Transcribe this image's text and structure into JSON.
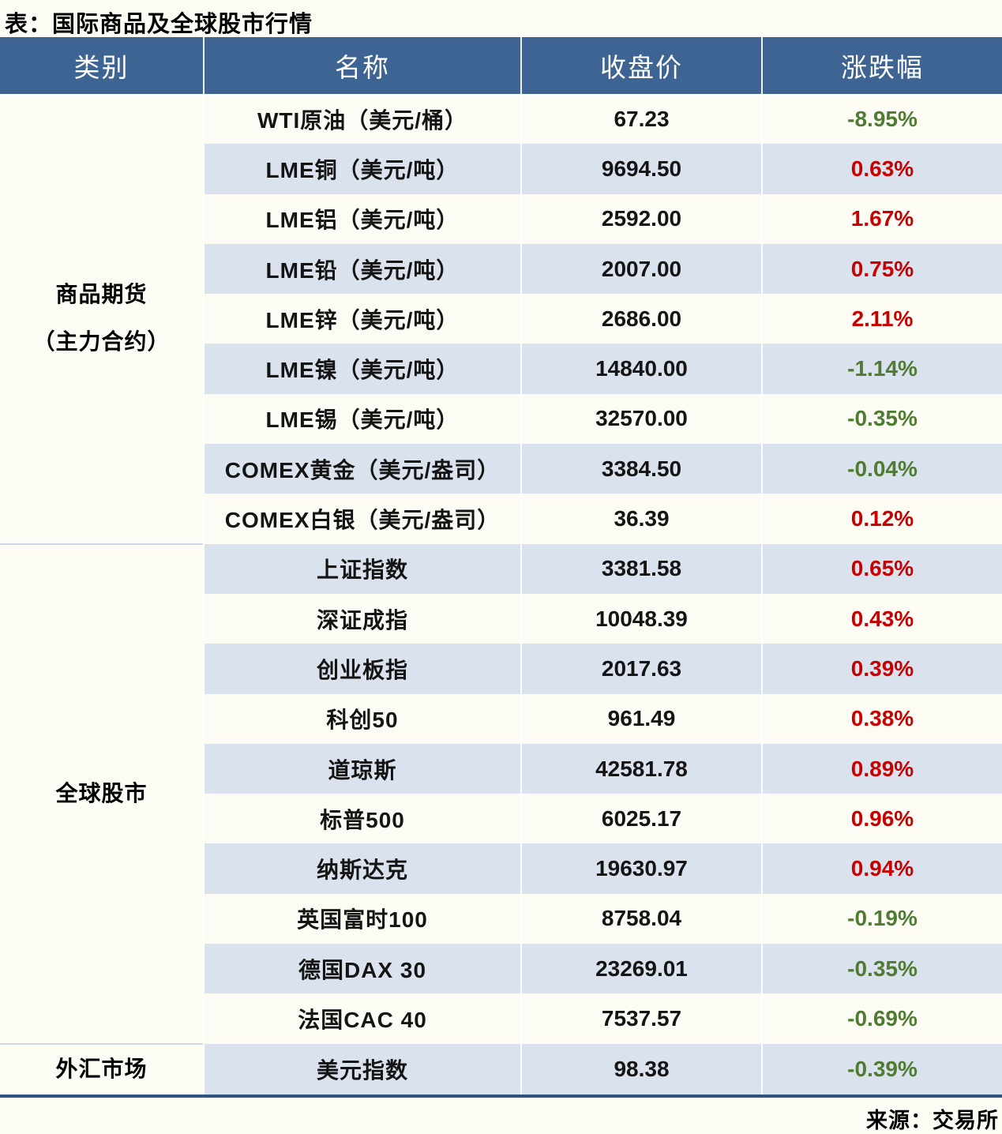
{
  "page": {
    "title": "表：国际商品及全球股市行情",
    "source": "来源：交易所"
  },
  "table": {
    "headers": [
      "类别",
      "名称",
      "收盘价",
      "涨跌幅"
    ],
    "colors": {
      "header_bg": "#3D6492",
      "row_bg": "#FDFCF4",
      "row_alt_bg": "#DAE2EE",
      "up_red": "#C80000",
      "down_green": "#4F7B33",
      "bottom_border": "#2F5480",
      "section_divider": "#CCD6E4"
    },
    "groups": [
      {
        "category_lines": [
          "商品期货",
          "（主力合约）"
        ],
        "rows": [
          {
            "name": "WTI原油（美元/桶）",
            "close": "67.23",
            "change": "-8.95%"
          },
          {
            "name": "LME铜（美元/吨）",
            "close": "9694.50",
            "change": "0.63%"
          },
          {
            "name": "LME铝（美元/吨）",
            "close": "2592.00",
            "change": "1.67%"
          },
          {
            "name": "LME铅（美元/吨）",
            "close": "2007.00",
            "change": "0.75%"
          },
          {
            "name": "LME锌（美元/吨）",
            "close": "2686.00",
            "change": "2.11%"
          },
          {
            "name": "LME镍（美元/吨）",
            "close": "14840.00",
            "change": "-1.14%"
          },
          {
            "name": "LME锡（美元/吨）",
            "close": "32570.00",
            "change": "-0.35%"
          },
          {
            "name": "COMEX黄金（美元/盎司）",
            "close": "3384.50",
            "change": "-0.04%"
          },
          {
            "name": "COMEX白银（美元/盎司）",
            "close": "36.39",
            "change": "0.12%"
          }
        ]
      },
      {
        "category_lines": [
          "全球股市"
        ],
        "rows": [
          {
            "name": "上证指数",
            "close": "3381.58",
            "change": "0.65%"
          },
          {
            "name": "深证成指",
            "close": "10048.39",
            "change": "0.43%"
          },
          {
            "name": "创业板指",
            "close": "2017.63",
            "change": "0.39%"
          },
          {
            "name": "科创50",
            "close": "961.49",
            "change": "0.38%"
          },
          {
            "name": "道琼斯",
            "close": "42581.78",
            "change": "0.89%"
          },
          {
            "name": "标普500",
            "close": "6025.17",
            "change": "0.96%"
          },
          {
            "name": "纳斯达克",
            "close": "19630.97",
            "change": "0.94%"
          },
          {
            "name": "英国富时100",
            "close": "8758.04",
            "change": "-0.19%"
          },
          {
            "name": "德国DAX 30",
            "close": "23269.01",
            "change": "-0.35%"
          },
          {
            "name": "法国CAC 40",
            "close": "7537.57",
            "change": "-0.69%"
          }
        ]
      },
      {
        "category_lines": [
          "外汇市场"
        ],
        "rows": [
          {
            "name": "美元指数",
            "close": "98.38",
            "change": "-0.39%"
          }
        ]
      }
    ]
  }
}
